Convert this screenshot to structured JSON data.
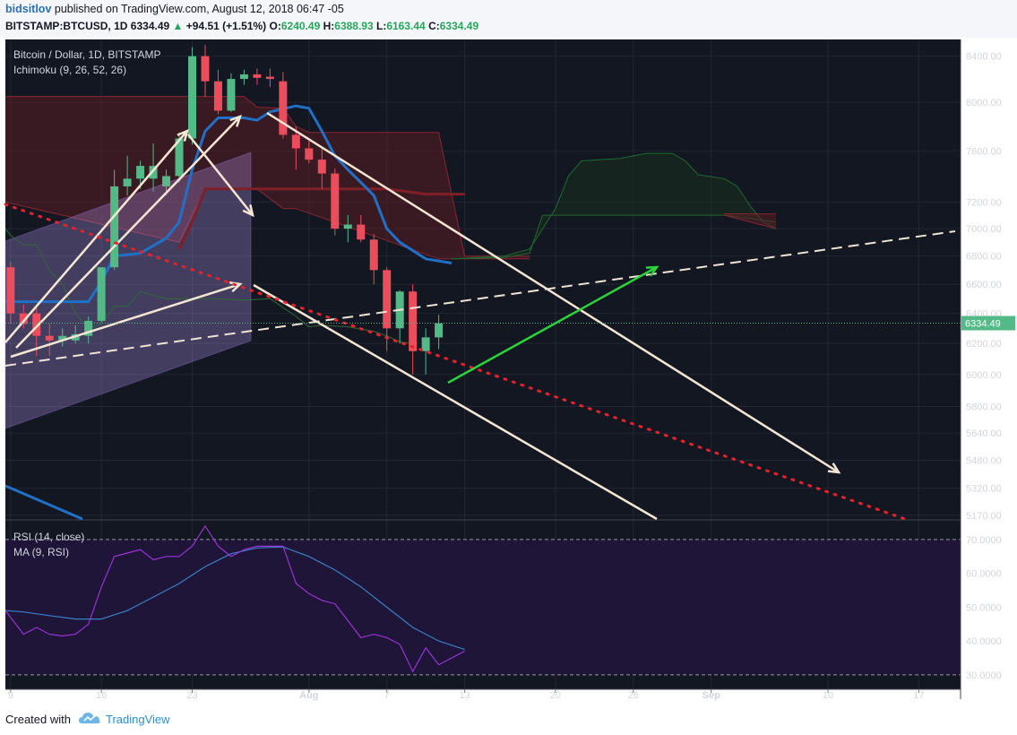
{
  "header": {
    "author": "bidsitlov",
    "published_text": " published on TradingView.com, August 12, 2018 06:47 -05",
    "symbol": "BITSTAMP:BTCUSD, 1D",
    "last": "6334.49",
    "change": "+94.51 (+1.51%)",
    "o_label": "O:",
    "o": "6240.49",
    "h_label": "H:",
    "h": "6388.93",
    "l_label": "L:",
    "l": "6163.44",
    "c_label": "C:",
    "c": "6334.49",
    "up_icon": "triangle-up-icon"
  },
  "chart_data": {
    "type": "candlestick",
    "title": "Bitcoin / Dollar, 1D, BITSTAMP",
    "indicator": "Ichimoku (9, 26, 52, 26)",
    "price_axis": {
      "ticks": [
        8400,
        8000,
        7600,
        7200,
        7000,
        6800,
        6600,
        6400,
        6200,
        6000,
        5800,
        5640,
        5480,
        5320,
        5170
      ],
      "tick_labels": [
        "8400.00",
        "8000.00",
        "7600.00",
        "7200.00",
        "7000.00",
        "6800.00",
        "6600.00",
        "6400.00",
        "6200.00",
        "6000.00",
        "5800.00",
        "5640.00",
        "5480.00",
        "5320.00",
        "5170.00"
      ],
      "ylim": [
        5150,
        8550
      ],
      "scale": "log",
      "current_price_label": "6334.49",
      "current_price": 6334.49
    },
    "time_axis": {
      "labels": [
        {
          "label": "9",
          "day": 9
        },
        {
          "label": "16",
          "day": 16
        },
        {
          "label": "23",
          "day": 23
        },
        {
          "label": "Aug",
          "day": 32
        },
        {
          "label": "7",
          "day": 38
        },
        {
          "label": "13",
          "day": 44
        },
        {
          "label": "20",
          "day": 51
        },
        {
          "label": "26",
          "day": 57
        },
        {
          "label": "Sep",
          "day": 63
        },
        {
          "label": "10",
          "day": 72
        },
        {
          "label": "17",
          "day": 79
        }
      ],
      "xlim": [
        8.6,
        81.8
      ]
    },
    "candles": [
      {
        "day": 9,
        "o": 6720,
        "h": 6760,
        "c": 6400,
        "l": 6330
      },
      {
        "day": 10,
        "o": 6400,
        "h": 6460,
        "c": 6330,
        "l": 6300
      },
      {
        "day": 11,
        "o": 6400,
        "h": 6440,
        "c": 6250,
        "l": 6120
      },
      {
        "day": 12,
        "o": 6250,
        "h": 6330,
        "c": 6220,
        "l": 6120
      },
      {
        "day": 13,
        "o": 6220,
        "h": 6300,
        "c": 6250,
        "l": 6180
      },
      {
        "day": 14,
        "o": 6220,
        "h": 6320,
        "c": 6260,
        "l": 6200
      },
      {
        "day": 15,
        "o": 6250,
        "h": 6380,
        "c": 6350,
        "l": 6200
      },
      {
        "day": 16,
        "o": 6350,
        "h": 6720,
        "c": 6720,
        "l": 6340
      },
      {
        "day": 17,
        "o": 6720,
        "h": 7450,
        "c": 7320,
        "l": 6700
      },
      {
        "day": 18,
        "o": 7320,
        "h": 7560,
        "c": 7380,
        "l": 7250
      },
      {
        "day": 19,
        "o": 7380,
        "h": 7520,
        "c": 7480,
        "l": 7300
      },
      {
        "day": 20,
        "o": 7380,
        "h": 7660,
        "c": 7480,
        "l": 7280
      },
      {
        "day": 21,
        "o": 7320,
        "h": 7450,
        "c": 7400,
        "l": 7250
      },
      {
        "day": 22,
        "o": 7400,
        "h": 7750,
        "c": 7700,
        "l": 7350
      },
      {
        "day": 23,
        "o": 7700,
        "h": 8480,
        "c": 8400,
        "l": 7650
      },
      {
        "day": 24,
        "o": 8400,
        "h": 8500,
        "c": 8180,
        "l": 8050
      },
      {
        "day": 25,
        "o": 8180,
        "h": 8280,
        "c": 7930,
        "l": 7900
      },
      {
        "day": 26,
        "o": 7930,
        "h": 8250,
        "c": 8200,
        "l": 7920
      },
      {
        "day": 27,
        "o": 8200,
        "h": 8280,
        "c": 8240,
        "l": 8150
      },
      {
        "day": 28,
        "o": 8240,
        "h": 8290,
        "c": 8210,
        "l": 8150
      },
      {
        "day": 29,
        "o": 8220,
        "h": 8290,
        "c": 8200,
        "l": 8130
      },
      {
        "day": 30,
        "o": 8180,
        "h": 8260,
        "c": 7730,
        "l": 7700
      },
      {
        "day": 31,
        "o": 7730,
        "h": 7800,
        "c": 7620,
        "l": 7450
      },
      {
        "day": 32,
        "o": 7620,
        "h": 7680,
        "c": 7530,
        "l": 7500
      },
      {
        "day": 33,
        "o": 7530,
        "h": 7620,
        "c": 7420,
        "l": 7300
      },
      {
        "day": 34,
        "o": 7420,
        "h": 7460,
        "c": 7000,
        "l": 6950
      },
      {
        "day": 35,
        "o": 7000,
        "h": 7100,
        "c": 7030,
        "l": 6900
      },
      {
        "day": 36,
        "o": 7030,
        "h": 7100,
        "c": 6920,
        "l": 6900
      },
      {
        "day": 37,
        "o": 6920,
        "h": 6960,
        "c": 6700,
        "l": 6600
      },
      {
        "day": 38,
        "o": 6700,
        "h": 6720,
        "c": 6300,
        "l": 6150
      },
      {
        "day": 39,
        "o": 6300,
        "h": 6560,
        "c": 6550,
        "l": 6200
      },
      {
        "day": 40,
        "o": 6550,
        "h": 6600,
        "c": 6150,
        "l": 6000
      },
      {
        "day": 41,
        "o": 6150,
        "h": 6300,
        "c": 6240,
        "l": 6000
      },
      {
        "day": 42,
        "o": 6240,
        "h": 6390,
        "c": 6334,
        "l": 6163
      }
    ],
    "rsi": {
      "label": "RSI (14, close)",
      "ma_label": "MA (9, RSI)",
      "tick_labels": [
        "70.0000",
        "60.0000",
        "50.0000",
        "40.0000",
        "30.0000"
      ],
      "ticks": [
        70,
        60,
        50,
        40,
        30
      ],
      "ylim": [
        26,
        75
      ],
      "band": [
        30,
        70
      ],
      "rsi_values": [
        {
          "day": 8.6,
          "v": 49
        },
        {
          "day": 10,
          "v": 42
        },
        {
          "day": 11,
          "v": 44
        },
        {
          "day": 12,
          "v": 42
        },
        {
          "day": 13,
          "v": 41.5
        },
        {
          "day": 14,
          "v": 42
        },
        {
          "day": 15,
          "v": 45
        },
        {
          "day": 16,
          "v": 56
        },
        {
          "day": 17,
          "v": 65
        },
        {
          "day": 18,
          "v": 66
        },
        {
          "day": 19,
          "v": 67
        },
        {
          "day": 20,
          "v": 64
        },
        {
          "day": 21,
          "v": 65
        },
        {
          "day": 22,
          "v": 65
        },
        {
          "day": 23,
          "v": 68
        },
        {
          "day": 24,
          "v": 74
        },
        {
          "day": 25,
          "v": 68
        },
        {
          "day": 26,
          "v": 65
        },
        {
          "day": 27,
          "v": 67
        },
        {
          "day": 28,
          "v": 68
        },
        {
          "day": 29,
          "v": 68
        },
        {
          "day": 30,
          "v": 68
        },
        {
          "day": 31,
          "v": 57
        },
        {
          "day": 32,
          "v": 54
        },
        {
          "day": 33,
          "v": 52
        },
        {
          "day": 34,
          "v": 51
        },
        {
          "day": 35,
          "v": 46
        },
        {
          "day": 36,
          "v": 41
        },
        {
          "day": 37,
          "v": 42
        },
        {
          "day": 38,
          "v": 41
        },
        {
          "day": 39,
          "v": 39
        },
        {
          "day": 40,
          "v": 31
        },
        {
          "day": 41,
          "v": 38
        },
        {
          "day": 42,
          "v": 33
        },
        {
          "day": 43,
          "v": 35
        },
        {
          "day": 44,
          "v": 37
        }
      ],
      "ma_values": [
        {
          "day": 8.6,
          "v": 49
        },
        {
          "day": 10,
          "v": 48.6
        },
        {
          "day": 12,
          "v": 47.5
        },
        {
          "day": 14,
          "v": 46.5
        },
        {
          "day": 16,
          "v": 46.5
        },
        {
          "day": 18,
          "v": 49
        },
        {
          "day": 20,
          "v": 53
        },
        {
          "day": 22,
          "v": 57
        },
        {
          "day": 24,
          "v": 62
        },
        {
          "day": 26,
          "v": 65.8
        },
        {
          "day": 28,
          "v": 67.5
        },
        {
          "day": 30,
          "v": 67.8
        },
        {
          "day": 32,
          "v": 65
        },
        {
          "day": 34,
          "v": 61
        },
        {
          "day": 36,
          "v": 56
        },
        {
          "day": 38,
          "v": 50
        },
        {
          "day": 40,
          "v": 44
        },
        {
          "day": 42,
          "v": 40
        },
        {
          "day": 44,
          "v": 37.5
        }
      ]
    },
    "ichimoku": {
      "tenkan_blue": [
        {
          "day": 8.6,
          "v": 6480
        },
        {
          "day": 15,
          "v": 6480
        },
        {
          "day": 16,
          "v": 6620
        },
        {
          "day": 17,
          "v": 6800
        },
        {
          "day": 19,
          "v": 6820
        },
        {
          "day": 21,
          "v": 6930
        },
        {
          "day": 22,
          "v": 7050
        },
        {
          "day": 23,
          "v": 7450
        },
        {
          "day": 24,
          "v": 7760
        },
        {
          "day": 25,
          "v": 7870
        },
        {
          "day": 27,
          "v": 7870
        },
        {
          "day": 28,
          "v": 7850
        },
        {
          "day": 29,
          "v": 7920
        },
        {
          "day": 31,
          "v": 7970
        },
        {
          "day": 32,
          "v": 7950
        },
        {
          "day": 33,
          "v": 7760
        },
        {
          "day": 34,
          "v": 7560
        },
        {
          "day": 35,
          "v": 7450
        },
        {
          "day": 36,
          "v": 7350
        },
        {
          "day": 37,
          "v": 7250
        },
        {
          "day": 38,
          "v": 7000
        },
        {
          "day": 39,
          "v": 6900
        },
        {
          "day": 41,
          "v": 6780
        },
        {
          "day": 43,
          "v": 6750
        }
      ],
      "kijun_red": [
        {
          "day": 22,
          "v": 6850
        },
        {
          "day": 23,
          "v": 7050
        },
        {
          "day": 24,
          "v": 7300
        },
        {
          "day": 34,
          "v": 7300
        },
        {
          "day": 38,
          "v": 7300
        },
        {
          "day": 41,
          "v": 7260
        },
        {
          "day": 44,
          "v": 7260
        }
      ],
      "chikou_green": [
        {
          "day": 8.6,
          "v": 7000
        },
        {
          "day": 9,
          "v": 6950
        },
        {
          "day": 10,
          "v": 6880
        },
        {
          "day": 11,
          "v": 6880
        },
        {
          "day": 12,
          "v": 6700
        },
        {
          "day": 13,
          "v": 6600
        },
        {
          "day": 14,
          "v": 6400
        },
        {
          "day": 15,
          "v": 6300
        },
        {
          "day": 16,
          "v": 6330
        },
        {
          "day": 17,
          "v": 6450
        },
        {
          "day": 18,
          "v": 6450
        },
        {
          "day": 19,
          "v": 6550
        },
        {
          "day": 21,
          "v": 6500
        },
        {
          "day": 23,
          "v": 6500
        },
        {
          "day": 25,
          "v": 6500
        },
        {
          "day": 27,
          "v": 6490
        },
        {
          "day": 29,
          "v": 6500
        },
        {
          "day": 31,
          "v": 6380
        },
        {
          "day": 32,
          "v": 6310
        },
        {
          "day": 33,
          "v": 6320
        },
        {
          "day": 35,
          "v": 6310
        },
        {
          "day": 37,
          "v": 6280
        },
        {
          "day": 38,
          "v": 6250
        },
        {
          "day": 39,
          "v": 6210
        },
        {
          "day": 40,
          "v": 6200
        }
      ],
      "cloud_left": {
        "top": [
          {
            "day": 8.6,
            "v": 8050
          },
          {
            "day": 22,
            "v": 8050
          },
          {
            "day": 27,
            "v": 8050
          },
          {
            "day": 28,
            "v": 7960
          },
          {
            "day": 30,
            "v": 7950
          },
          {
            "day": 31,
            "v": 7800
          },
          {
            "day": 32,
            "v": 7750
          },
          {
            "day": 42,
            "v": 7750
          },
          {
            "day": 44,
            "v": 6800
          },
          {
            "day": 49,
            "v": 6800
          }
        ],
        "bottom": [
          {
            "day": 8.6,
            "v": 7200
          },
          {
            "day": 22,
            "v": 6900
          },
          {
            "day": 23,
            "v": 7100
          },
          {
            "day": 24,
            "v": 7300
          },
          {
            "day": 28,
            "v": 7300
          },
          {
            "day": 30,
            "v": 7150
          },
          {
            "day": 31,
            "v": 7150
          },
          {
            "day": 42,
            "v": 6780
          },
          {
            "day": 49,
            "v": 6780
          }
        ]
      },
      "cloud_green": {
        "top": [
          {
            "day": 43,
            "v": 6780
          },
          {
            "day": 47,
            "v": 6800
          },
          {
            "day": 49,
            "v": 6850
          },
          {
            "day": 51,
            "v": 7150
          },
          {
            "day": 52,
            "v": 7400
          },
          {
            "day": 53,
            "v": 7520
          },
          {
            "day": 56,
            "v": 7540
          },
          {
            "day": 58,
            "v": 7580
          },
          {
            "day": 60,
            "v": 7580
          },
          {
            "day": 61,
            "v": 7520
          },
          {
            "day": 62,
            "v": 7410
          },
          {
            "day": 64,
            "v": 7380
          },
          {
            "day": 65,
            "v": 7320
          },
          {
            "day": 66,
            "v": 7170
          },
          {
            "day": 67,
            "v": 7050
          },
          {
            "day": 68,
            "v": 7000
          }
        ],
        "bottom": [
          {
            "day": 43,
            "v": 6780
          },
          {
            "day": 47,
            "v": 6790
          },
          {
            "day": 49,
            "v": 6820
          },
          {
            "day": 50,
            "v": 7100
          },
          {
            "day": 58,
            "v": 7100
          },
          {
            "day": 64,
            "v": 7100
          },
          {
            "day": 68,
            "v": 7050
          }
        ]
      },
      "cloud_red_right": {
        "top": [
          {
            "day": 64,
            "v": 7110
          },
          {
            "day": 68,
            "v": 7110
          }
        ],
        "bottom": [
          {
            "day": 64,
            "v": 7100
          },
          {
            "day": 66,
            "v": 7050
          },
          {
            "day": 68,
            "v": 7000
          }
        ]
      }
    },
    "colors": {
      "bg": "#131722",
      "up": "#53b987",
      "down": "#eb4d5c",
      "grid": "#232733",
      "tenkan": "#2170c7",
      "kijun": "#7f1f28",
      "green_line": "#1c8a3a",
      "drawing": "#f5e6d3",
      "green_arrow": "#2bd43b",
      "dotted_red": "#e8212b",
      "rsi": "#9b33d6",
      "rsi_ma": "#3a80c9",
      "rsi_band": "#1e1538",
      "channel_fill": "#c3a0ff",
      "cloud_red": "#5a1e25",
      "cloud_green": "#17301d"
    }
  },
  "footer": {
    "created_with": "Created with",
    "brand": "TradingView",
    "brand_icon": "tradingview-cloud-icon"
  }
}
